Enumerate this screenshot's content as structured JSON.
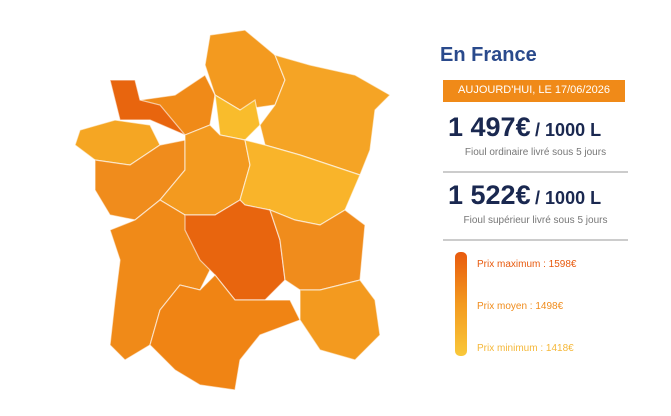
{
  "header": {
    "title": "En France",
    "date": "AUJOURD'HUI, LE 17/06/2026"
  },
  "prices": [
    {
      "price": "1 497€",
      "unit": "/ 1000 L",
      "description": "Fioul ordinaire livré sous 5 jours"
    },
    {
      "price": "1 522€",
      "unit": "/ 1000 L",
      "description": "Fioul supérieur livré sous 5 jours"
    }
  ],
  "legend": {
    "max": "Prix maximum : 1598€",
    "avg": "Prix moyen : 1498€",
    "min": "Prix minimum : 1418€"
  }
}
